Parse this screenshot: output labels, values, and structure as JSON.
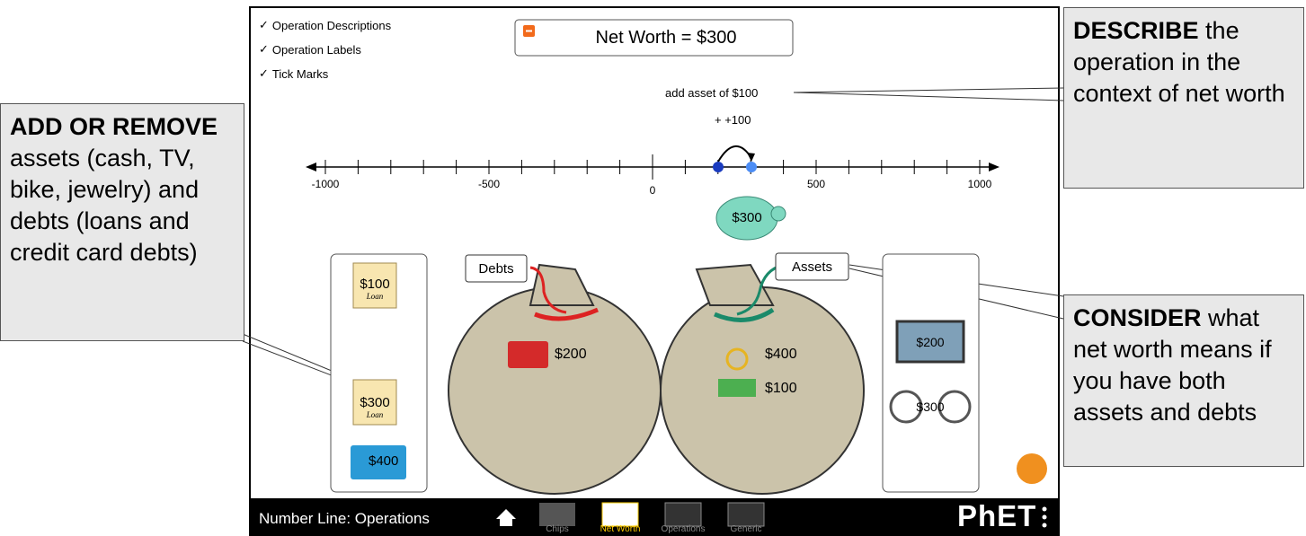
{
  "callouts": {
    "left": {
      "bold": "ADD OR REMOVE",
      "text": "assets (cash, TV, bike, jewelry) and debts (loans and credit card debts)"
    },
    "top_right": {
      "bold": "DESCRIBE",
      "text": "the operation in the context of net worth"
    },
    "right": {
      "bold": "CONSIDER",
      "text": "what net worth means if you have both assets and debts"
    }
  },
  "sim": {
    "checkboxes": [
      "Operation Descriptions",
      "Operation Labels",
      "Tick Marks"
    ],
    "net_worth": "Net Worth = $300",
    "operation_description": "add asset of $100",
    "operation_label": "+ +100",
    "number_line_labels": [
      "-1000",
      "-500",
      "0",
      "500",
      "1000"
    ],
    "piggy_bank": "$300",
    "debts_bag": {
      "label": "Debts",
      "items": [
        "$200"
      ]
    },
    "assets_bag": {
      "label": "Assets",
      "items": [
        "$400",
        "$100"
      ]
    },
    "debt_box": {
      "items": [
        {
          "amount": "$100",
          "kind": "Loan"
        },
        {
          "amount": "$300",
          "kind": "Loan"
        },
        {
          "amount": "$400"
        }
      ]
    },
    "asset_box": {
      "items": [
        "$200",
        "$300"
      ]
    },
    "nav": {
      "title": "Number Line: Operations",
      "tabs": [
        "Chips",
        "Net Worth",
        "Operations",
        "Generic"
      ],
      "logo": "PhET"
    }
  }
}
